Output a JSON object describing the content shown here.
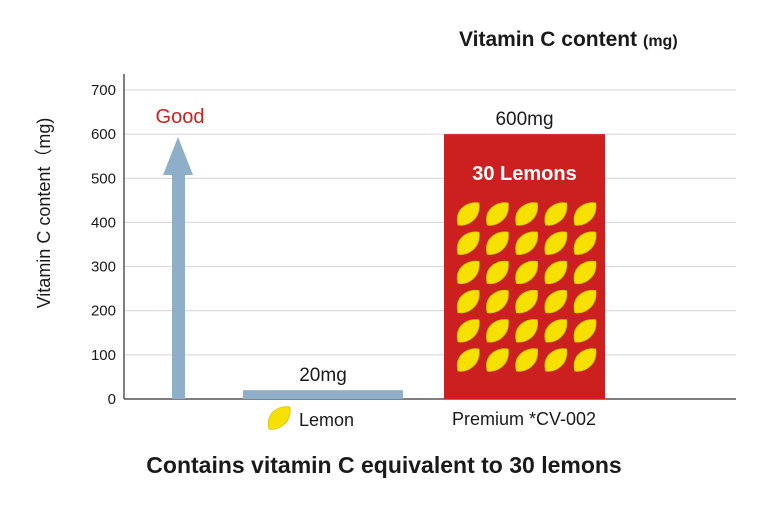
{
  "header": {
    "title": "Vitamin C content",
    "unit": "(mg)"
  },
  "caption": "Contains vitamin C equivalent to 30 lemons",
  "chart_data": {
    "type": "bar",
    "title": "Vitamin C content (mg)",
    "xlabel": "",
    "ylabel": "Vitamin C content（mg)",
    "ylim": [
      0,
      700
    ],
    "yticks": [
      0,
      100,
      200,
      300,
      400,
      500,
      600,
      700
    ],
    "grid": true,
    "categories": [
      "Lemon",
      "Premium *CV-002"
    ],
    "values": [
      20,
      600
    ],
    "value_labels": [
      "20mg",
      "600mg"
    ],
    "bar_colors": [
      "#8fafc9",
      "#cc2020"
    ],
    "bar_inner_text": [
      "",
      "30 Lemons"
    ],
    "lemon_icon_count": 30,
    "annotation": {
      "text": "Good",
      "color": "#cc2020",
      "arrow_color": "#8fafc9"
    }
  },
  "colors": {
    "lemon": "#f5e000",
    "lemon_stroke": "#d9c300",
    "grid": "#d4d4d4",
    "axis": "#555555"
  }
}
